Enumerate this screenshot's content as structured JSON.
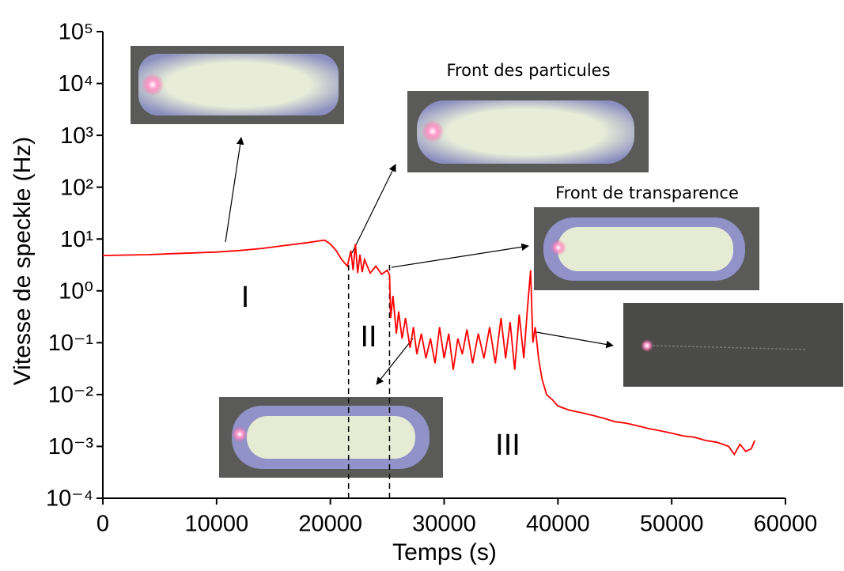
{
  "chart_data": {
    "type": "line",
    "x_label": "Temps (s)",
    "y_label": "Vitesse de speckle (Hz)",
    "log_y": true,
    "xlim": [
      0,
      60000
    ],
    "ylim": [
      0.0001,
      100000
    ],
    "xticks": [
      0,
      10000,
      20000,
      30000,
      40000,
      50000,
      60000
    ],
    "yticks": [
      {
        "value": 0.0001,
        "label": "10⁻⁴"
      },
      {
        "value": 0.001,
        "label": "10⁻³"
      },
      {
        "value": 0.01,
        "label": "10⁻²"
      },
      {
        "value": 0.1,
        "label": "10⁻¹"
      },
      {
        "value": 1,
        "label": "10⁰"
      },
      {
        "value": 10,
        "label": "10¹"
      },
      {
        "value": 100,
        "label": "10²"
      },
      {
        "value": 1000,
        "label": "10³"
      },
      {
        "value": 10000,
        "label": "10⁴"
      },
      {
        "value": 100000,
        "label": "10⁵"
      }
    ],
    "phase_boundaries": [
      21600,
      25200
    ],
    "annotations": [
      "I",
      "II",
      "III",
      "Front des particules",
      "Front de transparence"
    ],
    "series": [
      {
        "color": "#ff0000",
        "x": [
          0,
          2000,
          4000,
          6000,
          8000,
          10000,
          12000,
          14000,
          16000,
          18000,
          19000,
          19500,
          20000,
          20500,
          21000,
          21500,
          21800,
          22000,
          22200,
          22400,
          22600,
          22800,
          23000,
          23500,
          24000,
          24500,
          25000,
          25200,
          25300,
          25500,
          25800,
          26000,
          26300,
          26600,
          27000,
          27300,
          27600,
          28000,
          28400,
          28800,
          29200,
          29600,
          30000,
          30400,
          30800,
          31200,
          31600,
          32000,
          32500,
          33000,
          33500,
          34000,
          34500,
          35000,
          35400,
          35800,
          36200,
          36600,
          37000,
          37300,
          37600,
          37800,
          38000,
          38300,
          38600,
          39000,
          39500,
          40000,
          41000,
          42000,
          43000,
          44000,
          45000,
          46000,
          47000,
          48000,
          49000,
          50000,
          51000,
          52000,
          53000,
          54000,
          55000,
          55500,
          56000,
          56500,
          57000,
          57300
        ],
        "values": [
          4.8,
          4.9,
          5.0,
          5.2,
          5.4,
          5.6,
          6,
          6.6,
          7.5,
          8.5,
          9.2,
          9.5,
          8.0,
          6,
          4,
          3,
          6,
          2.5,
          8,
          2.2,
          5,
          2.3,
          4,
          2.2,
          3,
          2.1,
          2.5,
          2.0,
          0.3,
          0.8,
          0.15,
          0.4,
          0.12,
          0.3,
          0.08,
          0.2,
          0.06,
          0.15,
          0.05,
          0.12,
          0.04,
          0.2,
          0.05,
          0.15,
          0.03,
          0.12,
          0.06,
          0.18,
          0.04,
          0.15,
          0.05,
          0.2,
          0.04,
          0.3,
          0.05,
          0.25,
          0.03,
          0.35,
          0.05,
          0.4,
          2.5,
          0.1,
          0.2,
          0.05,
          0.02,
          0.01,
          0.008,
          0.006,
          0.005,
          0.0045,
          0.004,
          0.0035,
          0.003,
          0.0028,
          0.0025,
          0.0022,
          0.002,
          0.0018,
          0.0016,
          0.0015,
          0.0013,
          0.0012,
          0.001,
          0.0007,
          0.0011,
          0.0008,
          0.0009,
          0.0013
        ]
      }
    ]
  }
}
